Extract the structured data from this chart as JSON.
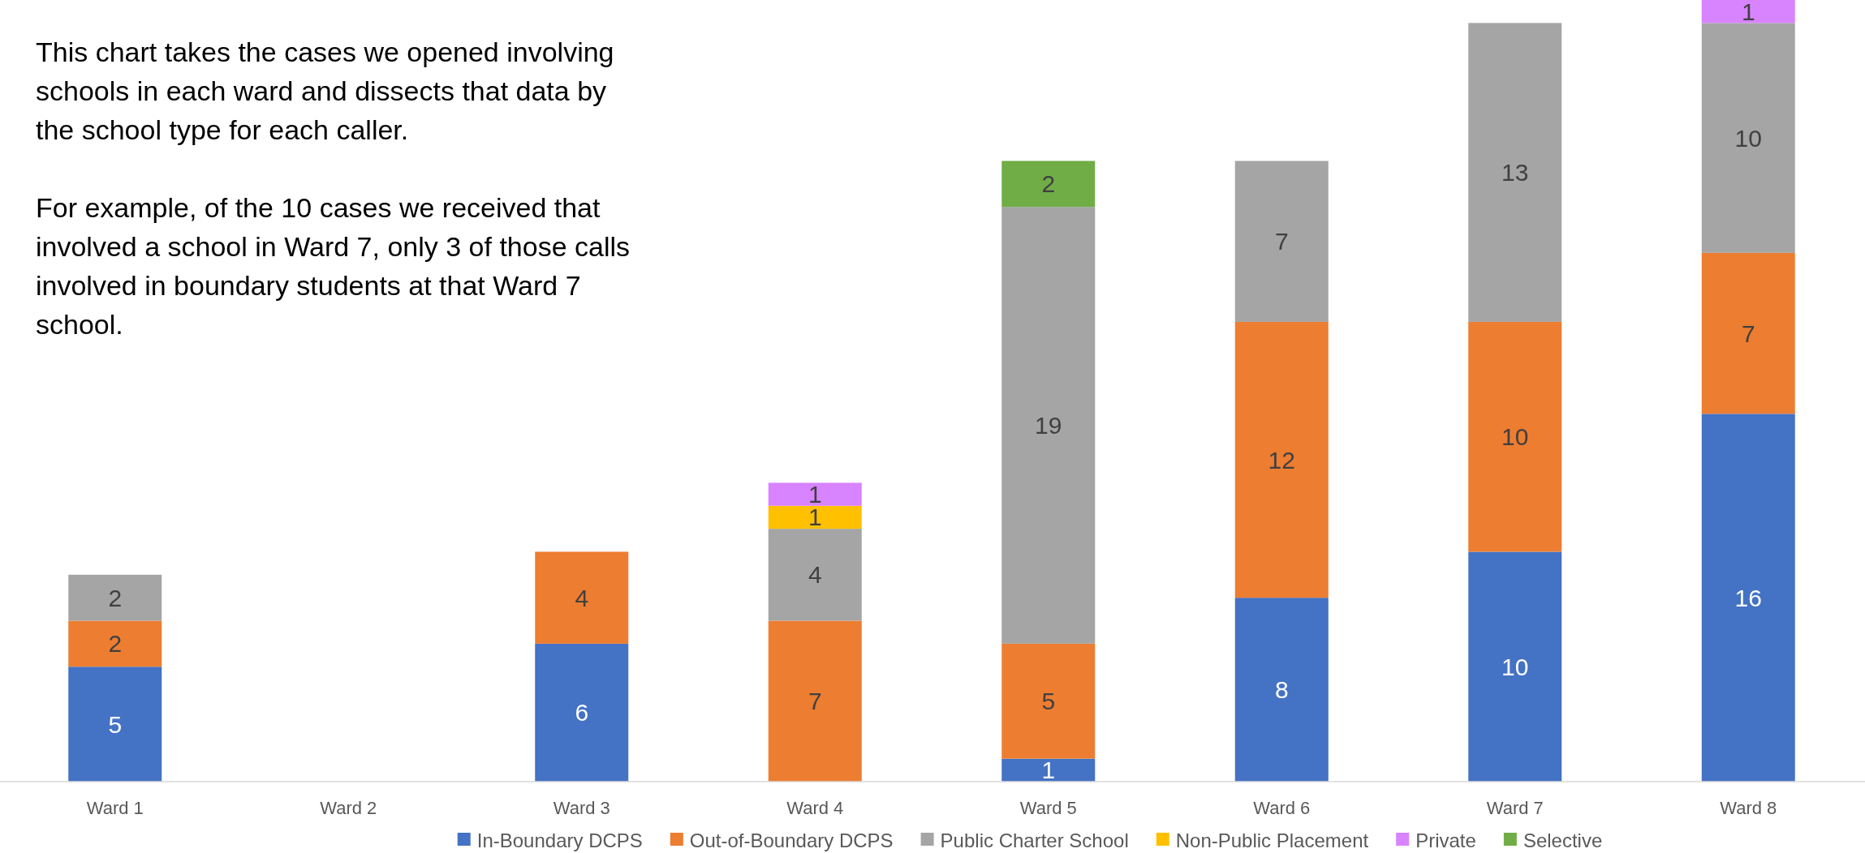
{
  "chart_data": {
    "type": "bar",
    "stacked": true,
    "data_labels": true,
    "legend": "bottom",
    "ylim": [
      0,
      34
    ],
    "categories": [
      "Ward 1",
      "Ward 2",
      "Ward 3",
      "Ward 4",
      "Ward 5",
      "Ward 6",
      "Ward 7",
      "Ward 8"
    ],
    "series": [
      {
        "name": "In-Boundary DCPS",
        "color": "#4472c4",
        "values": [
          5,
          null,
          6,
          null,
          1,
          8,
          10,
          16
        ]
      },
      {
        "name": "Out-of-Boundary DCPS",
        "color": "#ed7d31",
        "values": [
          2,
          null,
          4,
          7,
          5,
          12,
          10,
          7
        ]
      },
      {
        "name": "Public Charter School",
        "color": "#a5a5a5",
        "values": [
          2,
          null,
          null,
          4,
          19,
          7,
          13,
          10
        ]
      },
      {
        "name": "Non-Public Placement",
        "color": "#ffc000",
        "values": [
          null,
          null,
          null,
          1,
          null,
          null,
          null,
          null
        ]
      },
      {
        "name": "Private",
        "color": "#d883ff",
        "values": [
          null,
          null,
          null,
          1,
          null,
          null,
          null,
          1
        ]
      },
      {
        "name": "Selective",
        "color": "#70ad47",
        "values": [
          null,
          null,
          null,
          null,
          2,
          null,
          null,
          null
        ]
      }
    ],
    "annotations": [
      "This chart takes the cases we opened involving schools in each ward and dissects that data by the school type for each caller.",
      "For example, of the 10 cases we received that involved a school in Ward 7, only 3 of those calls involved in boundary students at that Ward 7 school."
    ]
  }
}
